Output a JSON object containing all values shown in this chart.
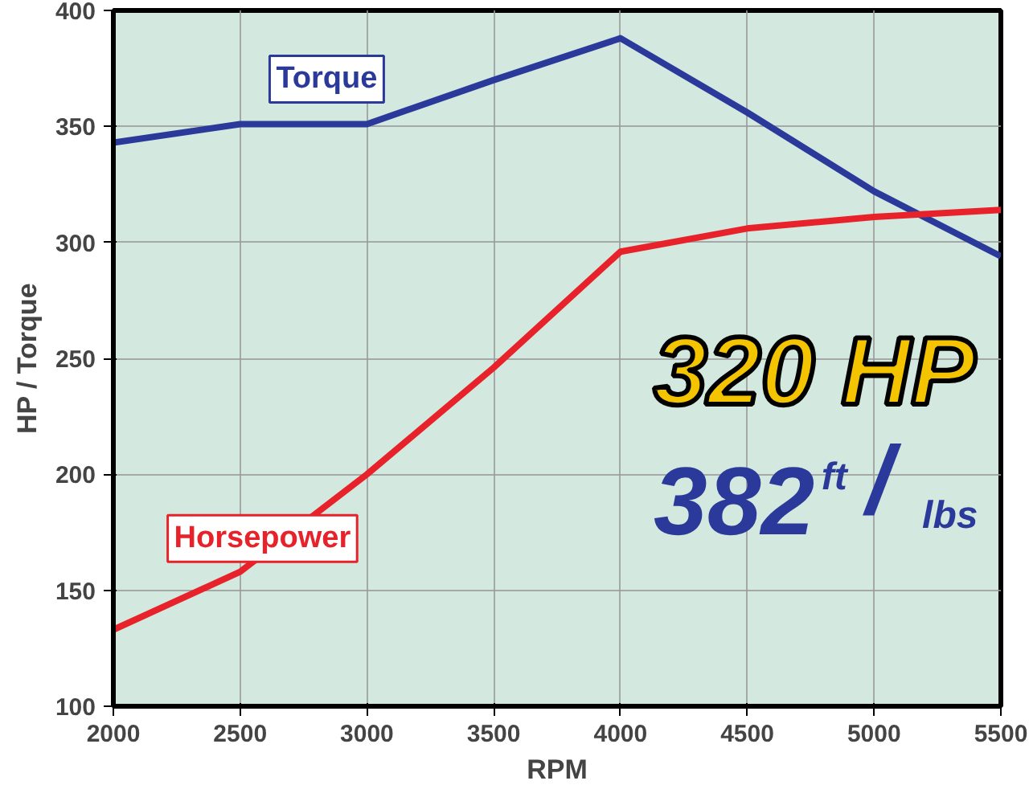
{
  "chart_data": {
    "type": "line",
    "xlabel": "RPM",
    "ylabel": "HP / Torque",
    "x": [
      2000,
      2500,
      3000,
      3500,
      4000,
      4500,
      5000,
      5500
    ],
    "series": [
      {
        "name": "Torque",
        "color": "#2b3a9a",
        "values": [
          343,
          351,
          351,
          370,
          388,
          356,
          322,
          294
        ]
      },
      {
        "name": "Horsepower",
        "color": "#e8222a",
        "values": [
          133,
          158,
          200,
          246,
          296,
          306,
          311,
          314
        ]
      }
    ],
    "xlim": [
      2000,
      5500
    ],
    "xticks": [
      2000,
      2500,
      3000,
      3500,
      4000,
      4500,
      5000,
      5500
    ],
    "ylim": [
      100,
      400
    ],
    "yticks": [
      100,
      150,
      200,
      250,
      300,
      350,
      400
    ],
    "grid": true,
    "marker": "none",
    "line_style": "solid",
    "annotations": [
      "320 HP",
      "382$^{ft}$/$_{lbs}$"
    ]
  }
}
